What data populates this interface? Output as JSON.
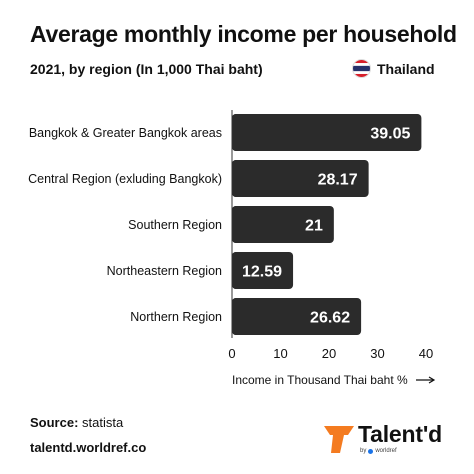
{
  "header": {
    "title": "Average monthly income per household",
    "subtitle": "2021, by region (In 1,000 Thai baht)",
    "country": "Thailand"
  },
  "colors": {
    "bar": "#2b2b2b",
    "bar_text": "#ffffff",
    "axis": "#333333",
    "accent": "#f47b20",
    "flag_red": "#d61f2b",
    "flag_blue": "#26316b"
  },
  "chart_data": {
    "type": "bar",
    "orientation": "horizontal",
    "categories": [
      "Bangkok & Greater Bangkok areas",
      "Central Region (exluding Bangkok)",
      "Southern Region",
      "Northeastern Region",
      "Northern Region"
    ],
    "values": [
      39.05,
      28.17,
      21,
      12.59,
      26.62
    ],
    "value_labels": [
      "39.05",
      "28.17",
      "21",
      "12.59",
      "26.62"
    ],
    "xlabel": "Income in Thousand Thai baht %",
    "xlim": [
      0,
      40
    ],
    "xticks": [
      0,
      10,
      20,
      30,
      40
    ],
    "grid": false,
    "legend": "none"
  },
  "footer": {
    "source_label": "Source:",
    "source_value": "statista",
    "website": "talentd.worldref.co"
  },
  "logo": {
    "name": "Talent'd",
    "by": "by",
    "parent": "worldref"
  }
}
